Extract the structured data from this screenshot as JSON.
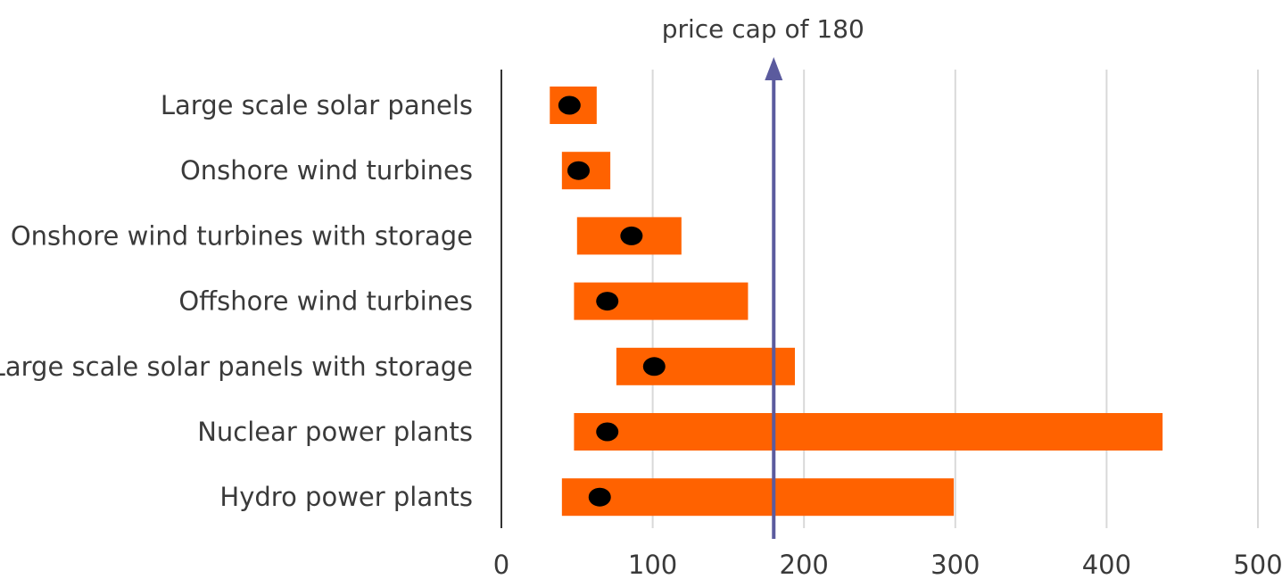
{
  "chart_data": {
    "type": "bar",
    "orientation": "horizontal",
    "categories": [
      "Large scale solar panels",
      "Onshore wind turbines",
      "Onshore wind turbines with storage",
      "Offshore wind turbines",
      "Large scale solar panels with storage",
      "Nuclear power plants",
      "Hydro power plants"
    ],
    "series": [
      {
        "values": [
          [
            32,
            63
          ],
          [
            40,
            72
          ],
          [
            50,
            119
          ],
          [
            48,
            163
          ],
          [
            76,
            194
          ],
          [
            48,
            437
          ],
          [
            40,
            299
          ]
        ]
      },
      {
        "values": [
          45,
          51,
          86,
          70,
          101,
          70,
          65
        ]
      }
    ],
    "xlim": [
      0,
      500
    ],
    "xticks": [
      0,
      100,
      200,
      300,
      400,
      500
    ],
    "grid": true,
    "annotation": {
      "text": "price cap of 180",
      "value": 180
    },
    "colors": {
      "range_bar": "#FF6200",
      "point": "#000000",
      "arrow": "#5B5B9E",
      "grid": "#D9D9D9",
      "axis": "#333333"
    }
  }
}
